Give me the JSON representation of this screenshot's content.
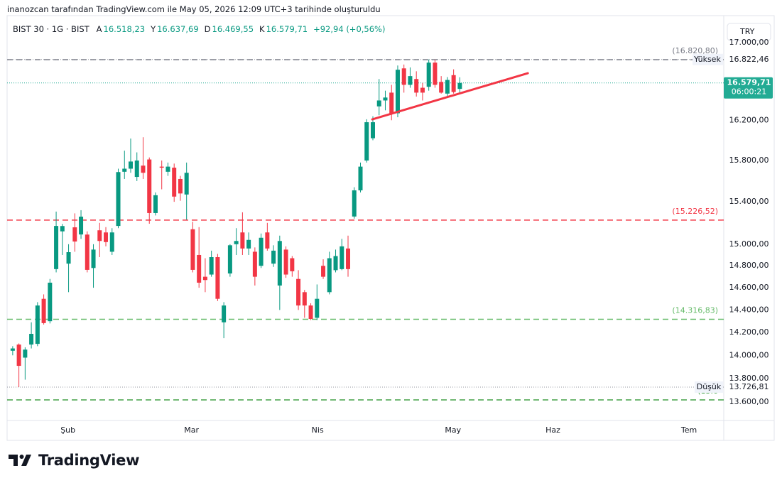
{
  "header": {
    "attribution": "inanozcan tarafından TradingView.com ile May 05, 2026 12:09 UTC+3 tarihinde oluşturuldu"
  },
  "chart_data": {
    "type": "candlestick",
    "symbol": "BIST 30 · 1G · BIST",
    "ohlc_legend": [
      {
        "key": "A",
        "label": "16.518,23"
      },
      {
        "key": "Y",
        "label": "16.637,69"
      },
      {
        "key": "D",
        "label": "16.469,55"
      },
      {
        "key": "K",
        "label": "16.579,71"
      }
    ],
    "change_label": "+92,94 (+0,56%)",
    "currency": "TRY",
    "up_color": "#089981",
    "down_color": "#f23645",
    "log": true,
    "grid": false,
    "x": [
      0,
      1,
      2,
      3,
      4,
      5,
      6,
      7,
      8,
      9,
      10,
      11,
      12,
      13,
      14,
      15,
      16,
      17,
      18,
      19,
      20,
      21,
      22,
      23,
      24,
      25,
      26,
      27,
      28,
      29,
      30,
      31,
      32,
      33,
      34,
      35,
      36,
      37,
      38,
      39,
      40,
      41,
      42,
      43,
      44,
      45,
      46,
      47,
      48,
      49,
      50,
      51,
      52,
      53,
      54,
      55,
      56,
      57,
      58,
      59,
      60,
      61,
      62,
      63,
      64,
      65,
      66,
      67,
      68,
      69,
      70,
      71,
      72
    ],
    "open": [
      14040,
      14094,
      13980,
      14094,
      14100,
      14500,
      14300,
      14770,
      15120,
      14820,
      15158,
      15091,
      15090,
      14780,
      15130,
      15110,
      14930,
      15171,
      15690,
      15720,
      15640,
      15750,
      15810,
      15293,
      15740,
      15690,
      15730,
      15620,
      15470,
      15140,
      14900,
      14700,
      14720,
      14880,
      14290,
      14730,
      15000,
      15110,
      14960,
      14930,
      14800,
      15110,
      14820,
      14620,
      14950,
      14870,
      14680,
      14560,
      14440,
      14330,
      14800,
      14560,
      14760,
      14770,
      14960,
      15260,
      15510,
      15800,
      16020,
      16340,
      16400,
      16480,
      16270,
      16730,
      16560,
      16620,
      16530,
      16540,
      16790,
      16590,
      16470,
      16660,
      16518.23
    ],
    "high": [
      14080,
      14104,
      14070,
      14290,
      14470,
      14540,
      14680,
      15307,
      15190,
      15000,
      15290,
      15320,
      15120,
      15000,
      15200,
      15160,
      15150,
      15720,
      15897,
      16017,
      15880,
      16030,
      15830,
      15490,
      15800,
      15780,
      15770,
      15650,
      15780,
      15210,
      15160,
      14870,
      14940,
      14910,
      14470,
      15000,
      15150,
      15300,
      15110,
      14970,
      15100,
      15200,
      14990,
      15080,
      14980,
      14890,
      14760,
      14580,
      14460,
      14630,
      14860,
      14930,
      14950,
      15050,
      15080,
      15540,
      15780,
      16210,
      16240,
      16620,
      16500,
      16560,
      16760,
      16770,
      16740,
      16700,
      16580,
      16822.46,
      16820.8,
      16650,
      16640,
      16720,
      16637.69
    ],
    "low": [
      14000,
      13726.81,
      13790,
      14060,
      14080,
      14270,
      14280,
      14740,
      14900,
      14560,
      14930,
      15050,
      14740,
      14600,
      14880,
      14980,
      14900,
      15150,
      15620,
      15680,
      15600,
      15620,
      15192,
      15270,
      15520,
      15650,
      15400,
      15410,
      15230,
      14740,
      14600,
      14560,
      14700,
      14480,
      14150,
      14700,
      14900,
      14900,
      14900,
      14620,
      14780,
      14940,
      14790,
      14400,
      14690,
      14700,
      14400,
      14330,
      14310,
      14310,
      14680,
      14540,
      14740,
      14760,
      14700,
      15240,
      15490,
      15780,
      16000,
      16250,
      16300,
      16200,
      16230,
      16480,
      16530,
      16440,
      16400,
      16500,
      16530,
      16470,
      16430,
      16470,
      16469.55
    ],
    "close": [
      14060,
      13909,
      14050,
      14188,
      14440,
      14283,
      14646,
      15171,
      15170,
      14926,
      15025,
      15259,
      14763,
      14950,
      15030,
      15020,
      15110,
      15687,
      15720,
      15790,
      15800,
      15680,
      15293,
      15463,
      15730,
      15740,
      15450,
      15480,
      15680,
      14763,
      14646,
      14670,
      14880,
      14500,
      14440,
      14990,
      15030,
      14960,
      15040,
      14700,
      15060,
      14960,
      14940,
      15030,
      14720,
      14750,
      14440,
      14440,
      14320,
      14500,
      14700,
      14870,
      14890,
      14980,
      14770,
      15510,
      15740,
      16180,
      16180,
      16400,
      16430,
      16270,
      16716,
      16560,
      16650,
      16480,
      16480,
      16790,
      16560,
      16480,
      16610,
      16486.77,
      16579.71
    ],
    "xlim": [
      -0.9,
      114.5
    ],
    "xticks": [
      {
        "value": 8.9,
        "label": "Şub"
      },
      {
        "value": 28.8,
        "label": "Mar"
      },
      {
        "value": 49.1,
        "label": "Nis"
      },
      {
        "value": 70.9,
        "label": "May"
      },
      {
        "value": 87.0,
        "label": "Haz"
      },
      {
        "value": 108.9,
        "label": "Tem"
      }
    ],
    "ylim": [
      13445,
      17287
    ],
    "yticks": [
      {
        "value": 13600,
        "label": "13.600,00"
      },
      {
        "value": 13800,
        "label": "13.800,00"
      },
      {
        "value": 14000,
        "label": "14.000,00"
      },
      {
        "value": 14200,
        "label": "14.200,00"
      },
      {
        "value": 14400,
        "label": "14.400,00"
      },
      {
        "value": 14600,
        "label": "14.600,00"
      },
      {
        "value": 14800,
        "label": "14.800,00"
      },
      {
        "value": 15000,
        "label": "15.000,00"
      },
      {
        "value": 15400,
        "label": "15.400,00"
      },
      {
        "value": 15800,
        "label": "15.800,00"
      },
      {
        "value": 16200,
        "label": "16.200,00"
      },
      {
        "value": 16600,
        "label": "16.600,00"
      },
      {
        "value": 17000,
        "label": "17.000,00"
      }
    ],
    "price_lines": [
      {
        "value": 16820.8,
        "label": "(16.820,80)",
        "color": "#787b86",
        "dash": "8,5"
      },
      {
        "value": 15226.52,
        "label": "(15.226,52)",
        "color": "#f23645",
        "dash": "8,5"
      },
      {
        "value": 14316.83,
        "label": "(14.316,83)",
        "color": "#66bb6a",
        "dash": "8,5"
      },
      {
        "value": 13618,
        "label": "(13.6",
        "color": "#43a047",
        "dash": "8,5"
      }
    ],
    "high_marker": {
      "value": 16822.46,
      "label": "16.822,46",
      "title": "Yüksek"
    },
    "low_marker": {
      "value": 13726.81,
      "label": "13.726,81",
      "title": "Düşük"
    },
    "last_price": {
      "value": 16579.71,
      "label": "16.579,71",
      "countdown": "06:00:21",
      "color": "#22ab94"
    },
    "trendline": {
      "x": [
        57.9,
        82.95
      ],
      "y": [
        16209,
        16680
      ],
      "color": "#f23645"
    }
  },
  "footer": {
    "brand": "TradingView"
  }
}
